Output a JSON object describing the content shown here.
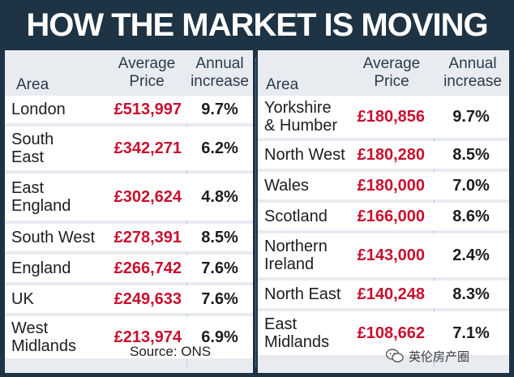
{
  "title": "HOW THE MARKET IS MOVING",
  "headers": {
    "area": "Area",
    "price_line1": "Average",
    "price_line2": "Price",
    "increase_line1": "Annual",
    "increase_line2": "increase"
  },
  "left_rows": [
    {
      "area_line1": "London",
      "area_line2": "",
      "price": "£513,997",
      "increase": "9.7%"
    },
    {
      "area_line1": "South",
      "area_line2": "East",
      "price": "£342,271",
      "increase": "6.2%"
    },
    {
      "area_line1": "East",
      "area_line2": "England",
      "price": "£302,624",
      "increase": "4.8%"
    },
    {
      "area_line1": "South West",
      "area_line2": "",
      "price": "£278,391",
      "increase": "8.5%"
    },
    {
      "area_line1": "England",
      "area_line2": "",
      "price": "£266,742",
      "increase": "7.6%"
    },
    {
      "area_line1": "UK",
      "area_line2": "",
      "price": "£249,633",
      "increase": "7.6%"
    },
    {
      "area_line1": "West",
      "area_line2": "Midlands",
      "price": "£213,974",
      "increase": "6.9%"
    }
  ],
  "right_rows": [
    {
      "area_line1": "Yorkshire",
      "area_line2": "& Humber",
      "price": "£180,856",
      "increase": "9.7%"
    },
    {
      "area_line1": "North West",
      "area_line2": "",
      "price": "£180,280",
      "increase": "8.5%"
    },
    {
      "area_line1": "Wales",
      "area_line2": "",
      "price": "£180,000",
      "increase": "7.0%"
    },
    {
      "area_line1": "Scotland",
      "area_line2": "",
      "price": "£166,000",
      "increase": "8.6%"
    },
    {
      "area_line1": "Northern",
      "area_line2": "Ireland",
      "price": "£143,000",
      "increase": "2.4%"
    },
    {
      "area_line1": "North East",
      "area_line2": "",
      "price": "£140,248",
      "increase": "8.3%"
    },
    {
      "area_line1": "East",
      "area_line2": "Midlands",
      "price": "£108,662",
      "increase": "7.1%"
    }
  ],
  "source": "Source: ONS",
  "watermark": "英伦房产圈",
  "colors": {
    "background": "#1e3344",
    "panel": "#e8ecf1",
    "row": "#ffffff",
    "price": "#c8102e",
    "text": "#1d1d1d"
  }
}
